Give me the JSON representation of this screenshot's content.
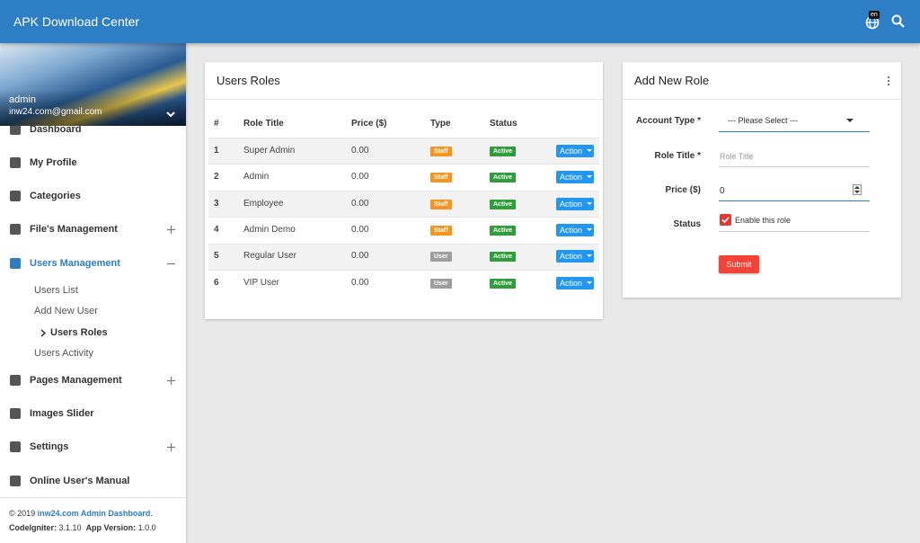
{
  "topbar": {
    "title": "APK Download Center",
    "language": "en"
  },
  "sidebar": {
    "user": {
      "name": "admin",
      "email": "inw24.com@gmail.com"
    },
    "menu": [
      {
        "label": "Dashboard"
      },
      {
        "label": "My Profile"
      },
      {
        "label": "Categories"
      },
      {
        "label": "File's Management",
        "toggle": "expand"
      },
      {
        "label": "Users Management",
        "toggle": "collapse",
        "active": true,
        "submenu": [
          {
            "label": "Users List"
          },
          {
            "label": "Add New User"
          },
          {
            "label": "Users Roles",
            "active": true
          },
          {
            "label": "Users Activity"
          }
        ]
      },
      {
        "label": "Pages Management",
        "toggle": "expand"
      },
      {
        "label": "Images Slider"
      },
      {
        "label": "Settings",
        "toggle": "expand"
      },
      {
        "label": "Online User's Manual"
      }
    ],
    "footer": {
      "copyright": "© 2019",
      "site": "inw24.com Admin Dashboard",
      "period": ".",
      "codeigniter_label": "CodeIgniter:",
      "codeigniter_version": "3.1.10",
      "app_version_label": "App Version:",
      "app_version": "1.0.0"
    }
  },
  "roles_card": {
    "title": "Users Roles",
    "columns": [
      "#",
      "Role Title",
      "Price ($)",
      "Type",
      "Status"
    ],
    "rows": [
      {
        "id": "1",
        "title": "Super Admin",
        "price": "0.00",
        "type": "Staff",
        "type_color": "#f7941d",
        "status": "Active",
        "action": "Action"
      },
      {
        "id": "2",
        "title": "Admin",
        "price": "0.00",
        "type": "Staff",
        "type_color": "#f7941d",
        "status": "Active",
        "action": "Action"
      },
      {
        "id": "3",
        "title": "Employee",
        "price": "0.00",
        "type": "Staff",
        "type_color": "#f7941d",
        "status": "Active",
        "action": "Action"
      },
      {
        "id": "4",
        "title": "Admin Demo",
        "price": "0.00",
        "type": "Staff",
        "type_color": "#f7941d",
        "status": "Active",
        "action": "Action"
      },
      {
        "id": "5",
        "title": "Regular User",
        "price": "0.00",
        "type": "User",
        "type_color": "#9e9e9e",
        "status": "Active",
        "action": "Action"
      },
      {
        "id": "6",
        "title": "VIP User",
        "price": "0.00",
        "type": "User",
        "type_color": "#9e9e9e",
        "status": "Active",
        "action": "Action"
      }
    ]
  },
  "form": {
    "title": "Add New Role",
    "account_type": {
      "label": "Account Type *",
      "placeholder": "--- Please Select ---"
    },
    "role_title": {
      "label": "Role Title *",
      "placeholder": "Role Title"
    },
    "price": {
      "label": "Price ($)",
      "value": "0"
    },
    "status": {
      "label": "Status",
      "checkbox": "Enable this role"
    },
    "submit": "Submit"
  }
}
